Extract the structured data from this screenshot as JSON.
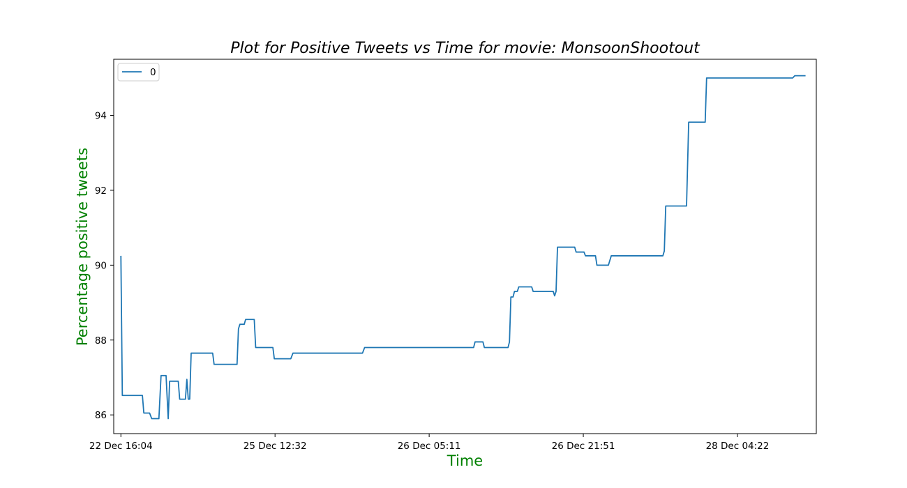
{
  "chart_data": {
    "type": "line",
    "title": "Plot for Positive Tweets vs Time for movie: MonsoonShootout",
    "xlabel": "Time",
    "ylabel": "Percentage positive tweets",
    "label_color": "#008000",
    "xlim": [
      -10,
      970
    ],
    "ylim": [
      85.5,
      95.5
    ],
    "x_ticks": [
      {
        "pos": 0,
        "label": "22 Dec 16:04"
      },
      {
        "pos": 215,
        "label": "25 Dec 12:32"
      },
      {
        "pos": 430,
        "label": "26 Dec 05:11"
      },
      {
        "pos": 645,
        "label": "26 Dec 21:51"
      },
      {
        "pos": 860,
        "label": "28 Dec 04:22"
      }
    ],
    "y_ticks": [
      {
        "value": 86,
        "label": "86"
      },
      {
        "value": 88,
        "label": "88"
      },
      {
        "value": 90,
        "label": "90"
      },
      {
        "value": 92,
        "label": "92"
      },
      {
        "value": 94,
        "label": "94"
      }
    ],
    "legend": {
      "placement": "top-left"
    },
    "grid": false,
    "series": [
      {
        "name": "0",
        "color": "#1f77b4",
        "points": [
          [
            0,
            90.25
          ],
          [
            2,
            86.52
          ],
          [
            30,
            86.52
          ],
          [
            32,
            86.05
          ],
          [
            40,
            86.05
          ],
          [
            43,
            85.9
          ],
          [
            53,
            85.9
          ],
          [
            56,
            87.05
          ],
          [
            63,
            87.05
          ],
          [
            66,
            85.9
          ],
          [
            68,
            86.9
          ],
          [
            80,
            86.9
          ],
          [
            82,
            86.42
          ],
          [
            90,
            86.42
          ],
          [
            92,
            86.95
          ],
          [
            94,
            86.42
          ],
          [
            96,
            86.42
          ],
          [
            98,
            87.65
          ],
          [
            128,
            87.65
          ],
          [
            130,
            87.35
          ],
          [
            162,
            87.35
          ],
          [
            164,
            88.3
          ],
          [
            166,
            88.42
          ],
          [
            172,
            88.42
          ],
          [
            174,
            88.55
          ],
          [
            186,
            88.55
          ],
          [
            188,
            87.8
          ],
          [
            212,
            87.8
          ],
          [
            214,
            87.5
          ],
          [
            237,
            87.5
          ],
          [
            240,
            87.65
          ],
          [
            337,
            87.65
          ],
          [
            340,
            87.8
          ],
          [
            492,
            87.8
          ],
          [
            494,
            87.95
          ],
          [
            505,
            87.95
          ],
          [
            507,
            87.8
          ],
          [
            540,
            87.8
          ],
          [
            542,
            87.95
          ],
          [
            544,
            89.15
          ],
          [
            547,
            89.15
          ],
          [
            549,
            89.3
          ],
          [
            553,
            89.3
          ],
          [
            555,
            89.42
          ],
          [
            573,
            89.42
          ],
          [
            575,
            89.3
          ],
          [
            603,
            89.3
          ],
          [
            605,
            89.18
          ],
          [
            607,
            89.3
          ],
          [
            609,
            90.48
          ],
          [
            633,
            90.48
          ],
          [
            635,
            90.35
          ],
          [
            646,
            90.35
          ],
          [
            648,
            90.25
          ],
          [
            662,
            90.25
          ],
          [
            664,
            90.0
          ],
          [
            680,
            90.0
          ],
          [
            684,
            90.25
          ],
          [
            756,
            90.25
          ],
          [
            758,
            90.38
          ],
          [
            760,
            91.58
          ],
          [
            789,
            91.58
          ],
          [
            792,
            93.82
          ],
          [
            815,
            93.82
          ],
          [
            817,
            95.0
          ],
          [
            937,
            95.0
          ],
          [
            940,
            95.06
          ],
          [
            955,
            95.06
          ]
        ]
      }
    ]
  }
}
